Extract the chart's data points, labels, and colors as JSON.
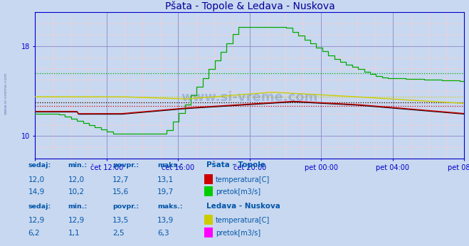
{
  "title": "Pšata - Topole & Ledava - Nuskova",
  "title_color": "#000099",
  "bg_color": "#c8d8f0",
  "plot_bg_color": "#c8d8f0",
  "grid_color_major": "#8888cc",
  "grid_color_minor": "#ffaaaa",
  "axis_color": "#0000cc",
  "ylim": [
    8.0,
    21.0
  ],
  "yticks": [
    10,
    18
  ],
  "xtick_positions": [
    0,
    240,
    480,
    720,
    960,
    1200,
    1440
  ],
  "xtick_labels": [
    "",
    "čet 12:00",
    "čet 16:00",
    "čet 20:00",
    "pet 00:00",
    "pet 04:00",
    "pet 08:00"
  ],
  "n_points": 288,
  "series": {
    "psata_temp": {
      "color": "#cc0000",
      "avg": 12.7,
      "min": 12.0,
      "max": 13.1,
      "last": 12.0
    },
    "psata_pretok": {
      "color": "#00aa00",
      "avg": 15.6,
      "min": 10.2,
      "max": 19.7,
      "last": 14.9
    },
    "ledava_temp": {
      "color": "#cccc00",
      "avg": 13.5,
      "min": 12.9,
      "max": 13.9,
      "last": 12.9
    },
    "ledava_pretok": {
      "color": "#ff00ff",
      "avg": 2.5,
      "min": 1.1,
      "max": 6.3,
      "last": 6.2
    },
    "black_line": {
      "color": "#000000",
      "avg": 13.0
    }
  },
  "table": {
    "headers": [
      "sedaj:",
      "min.:",
      "povpr.:",
      "maks.:"
    ],
    "psata_temp": [
      12.0,
      12.0,
      12.7,
      13.1
    ],
    "psata_pretok": [
      14.9,
      10.2,
      15.6,
      19.7
    ],
    "ledava_temp": [
      12.9,
      12.9,
      13.5,
      13.9
    ],
    "ledava_pretok": [
      6.2,
      1.1,
      2.5,
      6.3
    ]
  },
  "legend": {
    "psata_label": "Pšata - Topole",
    "ledava_label": "Ledava - Nuskova",
    "temp_label": "temperatura[C]",
    "pretok_label": "pretok[m3/s]",
    "temp_color_psata": "#cc0000",
    "pretok_color_psata": "#00cc00",
    "temp_color_ledava": "#cccc00",
    "pretok_color_ledava": "#ff00ff"
  },
  "watermark": "www.si-vreme.com",
  "table_color": "#0055aa"
}
